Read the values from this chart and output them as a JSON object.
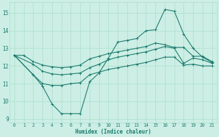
{
  "xlabel": "Humidex (Indice chaleur)",
  "bg_color": "#cceee4",
  "grid_color": "#aaddcc",
  "line_color": "#1a7a6e",
  "xlim": [
    -0.5,
    21.5
  ],
  "ylim": [
    8.8,
    15.6
  ],
  "yticks": [
    9,
    10,
    11,
    12,
    13,
    14,
    15
  ],
  "xticks": [
    0,
    1,
    2,
    3,
    4,
    5,
    6,
    7,
    8,
    9,
    10,
    11,
    12,
    13,
    14,
    15,
    16,
    17,
    18,
    19,
    20,
    21
  ],
  "line1_x": [
    0,
    1,
    2,
    3,
    4,
    5,
    6,
    7,
    8,
    9,
    10,
    11,
    12,
    13,
    14,
    15,
    16,
    17,
    18,
    19,
    20,
    21
  ],
  "line1_y": [
    12.6,
    12.6,
    12.25,
    12.05,
    11.95,
    11.9,
    11.95,
    12.05,
    12.4,
    12.55,
    12.7,
    12.8,
    12.9,
    13.0,
    13.1,
    13.3,
    13.2,
    13.05,
    13.05,
    12.55,
    12.55,
    12.25
  ],
  "line2_x": [
    0,
    2,
    3,
    4,
    5,
    6,
    7,
    8,
    9,
    10,
    11,
    12,
    13,
    14,
    15,
    16,
    17,
    18,
    19,
    20,
    21
  ],
  "line2_y": [
    12.6,
    11.5,
    11.0,
    10.9,
    10.9,
    11.0,
    11.05,
    11.5,
    11.65,
    11.8,
    11.9,
    12.0,
    12.1,
    12.2,
    12.35,
    12.5,
    12.5,
    12.05,
    12.1,
    12.0,
    12.0
  ],
  "line3_x": [
    0,
    2,
    3,
    4,
    5,
    6,
    7,
    8,
    9,
    10,
    11,
    12,
    13,
    14,
    15,
    16,
    17,
    18,
    19,
    20,
    21
  ],
  "line3_y": [
    12.6,
    12.1,
    11.7,
    11.55,
    11.5,
    11.55,
    11.6,
    11.9,
    12.1,
    12.35,
    12.5,
    12.6,
    12.7,
    12.8,
    12.95,
    13.1,
    13.0,
    12.15,
    12.45,
    12.35,
    12.15
  ],
  "line4_x": [
    0,
    2,
    3,
    4,
    5,
    6,
    7,
    8,
    9,
    10,
    11,
    12,
    13,
    14,
    15,
    16,
    17,
    18,
    19,
    20,
    21
  ],
  "line4_y": [
    12.6,
    11.5,
    10.85,
    9.85,
    9.3,
    9.3,
    9.3,
    11.1,
    11.6,
    12.45,
    13.35,
    13.45,
    13.55,
    14.0,
    14.05,
    15.2,
    15.1,
    13.8,
    13.0,
    12.5,
    12.2
  ]
}
